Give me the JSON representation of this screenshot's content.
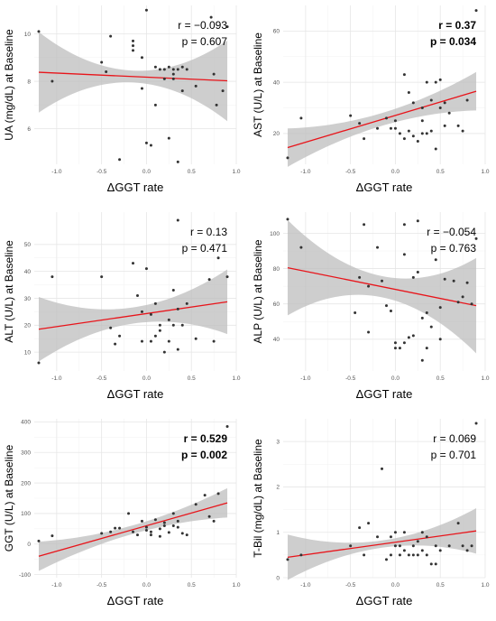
{
  "colors": {
    "fit_line": "#e8141a",
    "confidence_band": "#bdbdbd",
    "points": "#333333",
    "grid": "#e6e6e6"
  },
  "chart_data": [
    {
      "type": "scatter",
      "xlabel": "ΔGGT rate",
      "ylabel": "UA (mg/dL) at Baseline",
      "xlim": [
        -1.25,
        1.0
      ],
      "ylim": [
        4.5,
        11.2
      ],
      "xticks": [
        -1.0,
        -0.5,
        0.0,
        0.5,
        1.0
      ],
      "yticks": [
        6,
        8,
        10
      ],
      "r_label": "r = −0.093",
      "p_label": "p = 0.607",
      "stats_bold": false,
      "fit": {
        "x0": -1.2,
        "y0": 8.38,
        "x1": 0.9,
        "y1": 8.02,
        "band_min": 0.25,
        "band_max": 1.7
      },
      "points": [
        [
          -1.2,
          10.1
        ],
        [
          -1.05,
          8.0
        ],
        [
          -0.5,
          8.8
        ],
        [
          -0.45,
          8.4
        ],
        [
          -0.4,
          9.9
        ],
        [
          -0.3,
          4.7
        ],
        [
          -0.15,
          9.7
        ],
        [
          -0.15,
          9.5
        ],
        [
          -0.15,
          9.3
        ],
        [
          -0.05,
          9.0
        ],
        [
          -0.05,
          7.7
        ],
        [
          0.0,
          11.0
        ],
        [
          0.0,
          5.4
        ],
        [
          0.05,
          5.3
        ],
        [
          0.1,
          8.6
        ],
        [
          0.1,
          7.0
        ],
        [
          0.15,
          8.5
        ],
        [
          0.2,
          8.5
        ],
        [
          0.2,
          8.1
        ],
        [
          0.25,
          8.6
        ],
        [
          0.25,
          5.6
        ],
        [
          0.3,
          8.5
        ],
        [
          0.3,
          8.3
        ],
        [
          0.3,
          8.1
        ],
        [
          0.35,
          4.6
        ],
        [
          0.35,
          8.5
        ],
        [
          0.4,
          8.6
        ],
        [
          0.4,
          7.6
        ],
        [
          0.45,
          8.5
        ],
        [
          0.55,
          7.8
        ],
        [
          0.72,
          10.7
        ],
        [
          0.75,
          8.3
        ],
        [
          0.78,
          7.0
        ],
        [
          0.85,
          7.6
        ],
        [
          0.9,
          10.3
        ]
      ]
    },
    {
      "type": "scatter",
      "xlabel": "ΔGGT rate",
      "ylabel": "AST (U/L) at Baseline",
      "xlim": [
        -1.25,
        1.0
      ],
      "ylim": [
        8,
        70
      ],
      "xticks": [
        -1.0,
        -0.5,
        0.0,
        0.5,
        1.0
      ],
      "yticks": [
        20,
        40,
        60
      ],
      "r_label": "r = 0.37",
      "p_label": "p = 0.034",
      "stats_bold": true,
      "fit": {
        "x0": -1.2,
        "y0": 14.5,
        "x1": 0.9,
        "y1": 36.5,
        "band_min": 2.5,
        "band_max": 7.5
      },
      "points": [
        [
          -1.2,
          10.5
        ],
        [
          -1.05,
          26
        ],
        [
          -0.5,
          27
        ],
        [
          -0.4,
          24
        ],
        [
          -0.35,
          18
        ],
        [
          -0.2,
          22
        ],
        [
          -0.1,
          26
        ],
        [
          -0.05,
          22
        ],
        [
          0.0,
          25
        ],
        [
          0.0,
          22
        ],
        [
          0.05,
          20
        ],
        [
          0.1,
          43
        ],
        [
          0.1,
          18
        ],
        [
          0.15,
          36
        ],
        [
          0.15,
          21
        ],
        [
          0.2,
          32
        ],
        [
          0.2,
          19
        ],
        [
          0.25,
          17
        ],
        [
          0.3,
          30
        ],
        [
          0.3,
          25
        ],
        [
          0.3,
          20
        ],
        [
          0.35,
          40
        ],
        [
          0.35,
          20
        ],
        [
          0.4,
          33
        ],
        [
          0.4,
          21
        ],
        [
          0.45,
          40
        ],
        [
          0.45,
          14
        ],
        [
          0.5,
          30
        ],
        [
          0.5,
          41
        ],
        [
          0.55,
          32
        ],
        [
          0.55,
          23
        ],
        [
          0.6,
          28
        ],
        [
          0.7,
          23
        ],
        [
          0.75,
          21
        ],
        [
          0.8,
          33
        ],
        [
          0.9,
          68
        ]
      ]
    },
    {
      "type": "scatter",
      "xlabel": "ΔGGT rate",
      "ylabel": "ALT (U/L) at Baseline",
      "xlim": [
        -1.25,
        1.0
      ],
      "ylim": [
        3,
        62
      ],
      "xticks": [
        -1.0,
        -0.5,
        0.0,
        0.5,
        1.0
      ],
      "yticks": [
        10,
        20,
        30,
        40,
        50
      ],
      "r_label": "r = 0.13",
      "p_label": "p = 0.471",
      "stats_bold": false,
      "fit": {
        "x0": -1.2,
        "y0": 18.5,
        "x1": 0.9,
        "y1": 28.7,
        "band_min": 3.0,
        "band_max": 12.0
      },
      "points": [
        [
          -1.2,
          6
        ],
        [
          -1.05,
          38
        ],
        [
          -0.5,
          38
        ],
        [
          -0.4,
          19
        ],
        [
          -0.35,
          13
        ],
        [
          -0.3,
          16
        ],
        [
          -0.15,
          43
        ],
        [
          -0.1,
          31
        ],
        [
          -0.05,
          14
        ],
        [
          -0.05,
          25
        ],
        [
          0.0,
          41
        ],
        [
          0.05,
          24
        ],
        [
          0.05,
          14
        ],
        [
          0.1,
          16
        ],
        [
          0.1,
          28
        ],
        [
          0.15,
          20
        ],
        [
          0.15,
          18
        ],
        [
          0.2,
          10
        ],
        [
          0.25,
          22
        ],
        [
          0.25,
          14
        ],
        [
          0.3,
          33
        ],
        [
          0.3,
          20
        ],
        [
          0.35,
          11
        ],
        [
          0.35,
          26
        ],
        [
          0.35,
          59
        ],
        [
          0.4,
          20
        ],
        [
          0.45,
          28
        ],
        [
          0.55,
          15
        ],
        [
          0.7,
          37
        ],
        [
          0.75,
          14
        ],
        [
          0.8,
          45
        ],
        [
          0.9,
          38
        ]
      ]
    },
    {
      "type": "scatter",
      "xlabel": "ΔGGT rate",
      "ylabel": "ALP (U/L) at Baseline",
      "xlim": [
        -1.25,
        1.0
      ],
      "ylim": [
        22,
        112
      ],
      "xticks": [
        -1.0,
        -0.5,
        0.0,
        0.5,
        1.0
      ],
      "yticks": [
        40,
        60,
        80,
        100
      ],
      "r_label": "r = −0.054",
      "p_label": "p = 0.763",
      "stats_bold": false,
      "fit": {
        "x0": -1.2,
        "y0": 80.5,
        "x1": 0.9,
        "y1": 59.0,
        "band_min": 6.0,
        "band_max": 27.0
      },
      "points": [
        [
          -1.2,
          108
        ],
        [
          -1.05,
          92
        ],
        [
          -0.45,
          55
        ],
        [
          -0.4,
          75
        ],
        [
          -0.35,
          105
        ],
        [
          -0.3,
          70
        ],
        [
          -0.3,
          44
        ],
        [
          -0.2,
          92
        ],
        [
          -0.15,
          73
        ],
        [
          -0.1,
          59
        ],
        [
          -0.05,
          56
        ],
        [
          0.0,
          38
        ],
        [
          0.0,
          35
        ],
        [
          0.05,
          35
        ],
        [
          0.1,
          105
        ],
        [
          0.1,
          88
        ],
        [
          0.1,
          38
        ],
        [
          0.15,
          41
        ],
        [
          0.2,
          75
        ],
        [
          0.2,
          42
        ],
        [
          0.25,
          78
        ],
        [
          0.25,
          107
        ],
        [
          0.3,
          28
        ],
        [
          0.3,
          52
        ],
        [
          0.35,
          55
        ],
        [
          0.35,
          35
        ],
        [
          0.4,
          47
        ],
        [
          0.45,
          85
        ],
        [
          0.5,
          58
        ],
        [
          0.5,
          40
        ],
        [
          0.55,
          74
        ],
        [
          0.65,
          73
        ],
        [
          0.7,
          61
        ],
        [
          0.75,
          64
        ],
        [
          0.8,
          72
        ],
        [
          0.85,
          60
        ],
        [
          0.9,
          97
        ]
      ]
    },
    {
      "type": "scatter",
      "xlabel": "ΔGGT rate",
      "ylabel": "GGT (U/L) at Baseline",
      "xlim": [
        -1.25,
        1.0
      ],
      "ylim": [
        -110,
        410
      ],
      "xticks": [
        -1.0,
        -0.5,
        0.0,
        0.5,
        1.0
      ],
      "yticks": [
        -100,
        0,
        100,
        200,
        300,
        400
      ],
      "r_label": "r = 0.529",
      "p_label": "p = 0.002",
      "stats_bold": true,
      "fit": {
        "x0": -1.2,
        "y0": -40,
        "x1": 0.9,
        "y1": 135,
        "band_min": 14,
        "band_max": 48
      },
      "points": [
        [
          -1.2,
          10
        ],
        [
          -1.05,
          27
        ],
        [
          -0.5,
          35
        ],
        [
          -0.4,
          40
        ],
        [
          -0.35,
          52
        ],
        [
          -0.3,
          52
        ],
        [
          -0.2,
          100
        ],
        [
          -0.15,
          40
        ],
        [
          -0.1,
          30
        ],
        [
          -0.05,
          75
        ],
        [
          0.0,
          55
        ],
        [
          0.0,
          45
        ],
        [
          0.05,
          40
        ],
        [
          0.05,
          30
        ],
        [
          0.1,
          80
        ],
        [
          0.15,
          50
        ],
        [
          0.15,
          25
        ],
        [
          0.2,
          70
        ],
        [
          0.2,
          60
        ],
        [
          0.25,
          38
        ],
        [
          0.3,
          100
        ],
        [
          0.3,
          60
        ],
        [
          0.35,
          75
        ],
        [
          0.35,
          55
        ],
        [
          0.4,
          35
        ],
        [
          0.45,
          30
        ],
        [
          0.55,
          130
        ],
        [
          0.65,
          160
        ],
        [
          0.7,
          90
        ],
        [
          0.75,
          75
        ],
        [
          0.8,
          165
        ],
        [
          0.9,
          385
        ]
      ]
    },
    {
      "type": "scatter",
      "xlabel": "ΔGGT rate",
      "ylabel": "T-Bil (mg/dL) at Baseline",
      "xlim": [
        -1.25,
        1.0
      ],
      "ylim": [
        0,
        3.5
      ],
      "xticks": [
        -1.0,
        -0.5,
        0.0,
        0.5,
        1.0
      ],
      "yticks": [
        0,
        1,
        2,
        3
      ],
      "r_label": "r = 0.069",
      "p_label": "p = 0.701",
      "stats_bold": false,
      "fit": {
        "x0": -1.2,
        "y0": 0.45,
        "x1": 0.9,
        "y1": 1.03,
        "band_min": 0.08,
        "band_max": 0.5
      },
      "points": [
        [
          -1.2,
          0.4
        ],
        [
          -1.05,
          0.5
        ],
        [
          -0.5,
          0.7
        ],
        [
          -0.4,
          1.1
        ],
        [
          -0.35,
          0.5
        ],
        [
          -0.3,
          1.2
        ],
        [
          -0.2,
          0.9
        ],
        [
          -0.15,
          2.4
        ],
        [
          -0.1,
          0.4
        ],
        [
          -0.05,
          0.5
        ],
        [
          -0.05,
          0.9
        ],
        [
          0.0,
          0.7
        ],
        [
          0.0,
          1.0
        ],
        [
          0.05,
          0.5
        ],
        [
          0.05,
          0.7
        ],
        [
          0.1,
          0.6
        ],
        [
          0.1,
          1.0
        ],
        [
          0.15,
          0.5
        ],
        [
          0.2,
          0.5
        ],
        [
          0.2,
          0.7
        ],
        [
          0.25,
          0.5
        ],
        [
          0.25,
          0.8
        ],
        [
          0.3,
          0.6
        ],
        [
          0.3,
          1.0
        ],
        [
          0.35,
          0.5
        ],
        [
          0.35,
          0.9
        ],
        [
          0.4,
          0.3
        ],
        [
          0.45,
          0.3
        ],
        [
          0.45,
          0.7
        ],
        [
          0.5,
          0.6
        ],
        [
          0.6,
          0.7
        ],
        [
          0.7,
          1.2
        ],
        [
          0.75,
          0.7
        ],
        [
          0.8,
          0.6
        ],
        [
          0.85,
          0.7
        ],
        [
          0.9,
          3.4
        ]
      ]
    }
  ]
}
